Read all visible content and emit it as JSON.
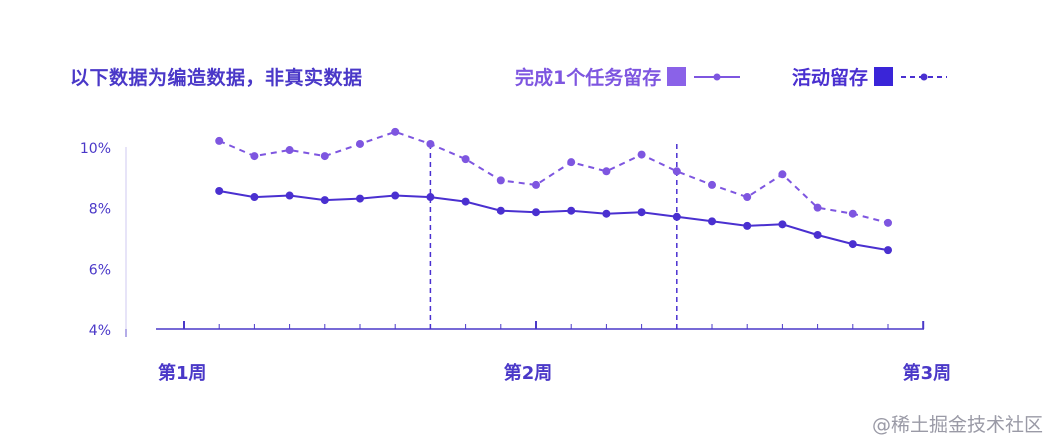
{
  "chart_data": {
    "type": "line",
    "title": "以下数据为编造数据，非真实数据",
    "ylim": [
      4,
      10.5
    ],
    "yticks": [
      {
        "value": 4,
        "label": "4%"
      },
      {
        "value": 6,
        "label": "6%"
      },
      {
        "value": 8,
        "label": "8%"
      },
      {
        "value": 10,
        "label": "10%"
      }
    ],
    "x_labels": [
      {
        "index": 0,
        "label": "第1周"
      },
      {
        "index": 10,
        "label": "第2周"
      },
      {
        "index": 21,
        "label": "第3周"
      }
    ],
    "x_count": 22,
    "vlines": [
      7,
      14
    ],
    "series": [
      {
        "name": "完成1个任务留存",
        "color": "#7e56e0",
        "style": "dashed",
        "start_index": 1,
        "values": [
          10.2,
          9.7,
          9.9,
          9.7,
          10.1,
          10.5,
          10.1,
          9.6,
          8.9,
          8.75,
          9.5,
          9.2,
          9.75,
          9.2,
          8.75,
          8.35,
          9.1,
          8.0,
          7.8,
          7.5
        ]
      },
      {
        "name": "活动留存",
        "color": "#4a30d0",
        "style": "solid",
        "start_index": 1,
        "values": [
          8.55,
          8.35,
          8.4,
          8.25,
          8.3,
          8.4,
          8.35,
          8.2,
          7.9,
          7.85,
          7.9,
          7.8,
          7.85,
          7.7,
          7.55,
          7.4,
          7.45,
          7.1,
          6.8,
          6.6
        ]
      }
    ],
    "legend_position": "top-right",
    "grid": false
  },
  "watermark": "@稀土掘金技术社区"
}
